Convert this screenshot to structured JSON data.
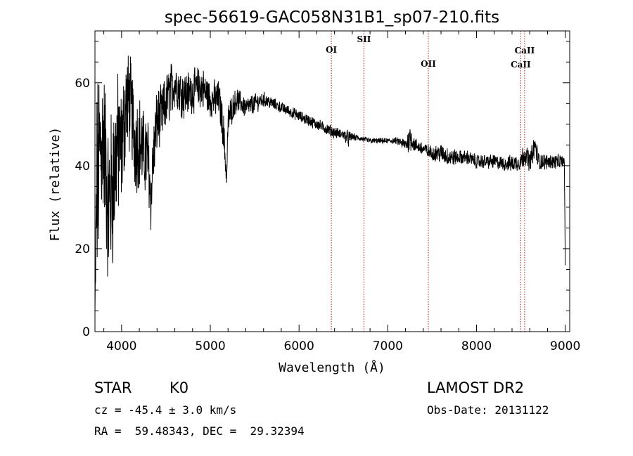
{
  "chart_data": {
    "type": "line",
    "title": "spec-56619-GAC058N31B1_sp07-210.fits",
    "xlabel": "Wavelength (Å)",
    "ylabel": "Flux (relative)",
    "xlim": [
      3700,
      9050
    ],
    "ylim": [
      0,
      72.5
    ],
    "xticks": [
      4000,
      5000,
      6000,
      7000,
      8000,
      9000
    ],
    "yticks": [
      0,
      20,
      40,
      60
    ],
    "spectrum_anchors": {
      "x": [
        3700,
        3720,
        3760,
        3800,
        3850,
        3900,
        3950,
        4000,
        4050,
        4100,
        4150,
        4200,
        4250,
        4300,
        4330,
        4350,
        4400,
        4450,
        4500,
        4550,
        4600,
        4700,
        4800,
        4900,
        5000,
        5100,
        5150,
        5170,
        5185,
        5200,
        5250,
        5300,
        5400,
        5500,
        5600,
        5700,
        5800,
        5900,
        6000,
        6100,
        6200,
        6300,
        6400,
        6500,
        6560,
        6600,
        6700,
        6800,
        6900,
        7000,
        7100,
        7200,
        7260,
        7300,
        7400,
        7500,
        7600,
        7700,
        7800,
        7900,
        8000,
        8100,
        8200,
        8300,
        8400,
        8500,
        8540,
        8600,
        8660,
        8700,
        8800,
        8900,
        8950,
        8990,
        9000
      ],
      "y": [
        4,
        34,
        44,
        47,
        30,
        35,
        45,
        44,
        55,
        55,
        46,
        46,
        43,
        42,
        31,
        40,
        51,
        52,
        55,
        58,
        60,
        57,
        58,
        59,
        56,
        56,
        48,
        41,
        37,
        51,
        54,
        56,
        54,
        55,
        56,
        55,
        54,
        53,
        52,
        51,
        50,
        49,
        48,
        47.5,
        46.5,
        47,
        46.5,
        46,
        46,
        46,
        46,
        45,
        47,
        45,
        44,
        43,
        43,
        42,
        42,
        42,
        41,
        41,
        41,
        40.5,
        40.5,
        41,
        43,
        41,
        45,
        41,
        41,
        41,
        41,
        41,
        16
      ],
      "noise": [
        0,
        22,
        20,
        16,
        18,
        18,
        16,
        12,
        12,
        10,
        11,
        10,
        9,
        9,
        6,
        8,
        7,
        6,
        6,
        6,
        5,
        5,
        4.5,
        4.5,
        4,
        4,
        4,
        3,
        3,
        3.5,
        3,
        2.5,
        2.2,
        2,
        1.6,
        1.3,
        1.2,
        1.2,
        1.2,
        1.2,
        1.2,
        1.2,
        1.2,
        1,
        1.8,
        0.8,
        0.6,
        0.6,
        0.6,
        0.6,
        0.7,
        1.5,
        3,
        1.5,
        1.5,
        1.5,
        2,
        2,
        1.5,
        1.5,
        1.5,
        1.5,
        1.5,
        1.5,
        1.8,
        2,
        2.5,
        2,
        2.5,
        2,
        1.5,
        1.5,
        1.5,
        1,
        0
      ]
    },
    "emission_lines": [
      {
        "name": "OI",
        "x": 6364
      },
      {
        "name": "SII",
        "x": 6731
      },
      {
        "name": "OII",
        "x": 7457
      },
      {
        "name": "CaII",
        "x": 8498
      },
      {
        "name": "CaII",
        "x": 8542
      }
    ],
    "line_color": "#000000",
    "marker_color": "#b01818"
  },
  "info": {
    "class": "STAR",
    "subclass": "K0",
    "survey": "LAMOST DR2",
    "cz_text": "cz = -45.4 ± 3.0 km/s",
    "obs_date_text": "Obs-Date: 20131122",
    "coords_text": "RA =  59.48343, DEC =  29.32394"
  }
}
